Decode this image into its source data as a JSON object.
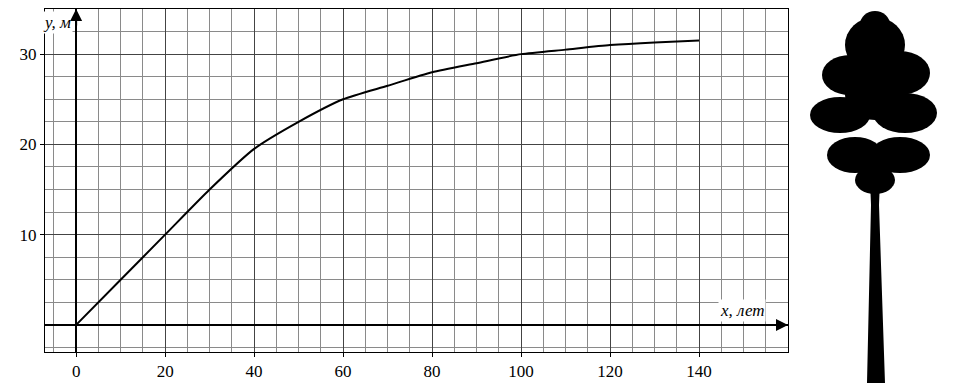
{
  "chart_data": {
    "type": "line",
    "x_label": "x, лет",
    "y_label": "y, м",
    "x": [
      0,
      10,
      20,
      30,
      40,
      50,
      60,
      70,
      80,
      90,
      100,
      110,
      120,
      130,
      140
    ],
    "values": [
      0,
      5,
      10,
      15,
      19.5,
      22.5,
      25,
      26.5,
      28,
      29,
      30,
      30.5,
      31,
      31.3,
      31.5
    ],
    "color": "#000000",
    "xlim": [
      -7,
      160
    ],
    "ylim": [
      -3,
      35
    ],
    "xticks": [
      0,
      20,
      40,
      60,
      80,
      100,
      120,
      140
    ],
    "yticks": [
      10,
      20,
      30
    ],
    "grid": true
  }
}
